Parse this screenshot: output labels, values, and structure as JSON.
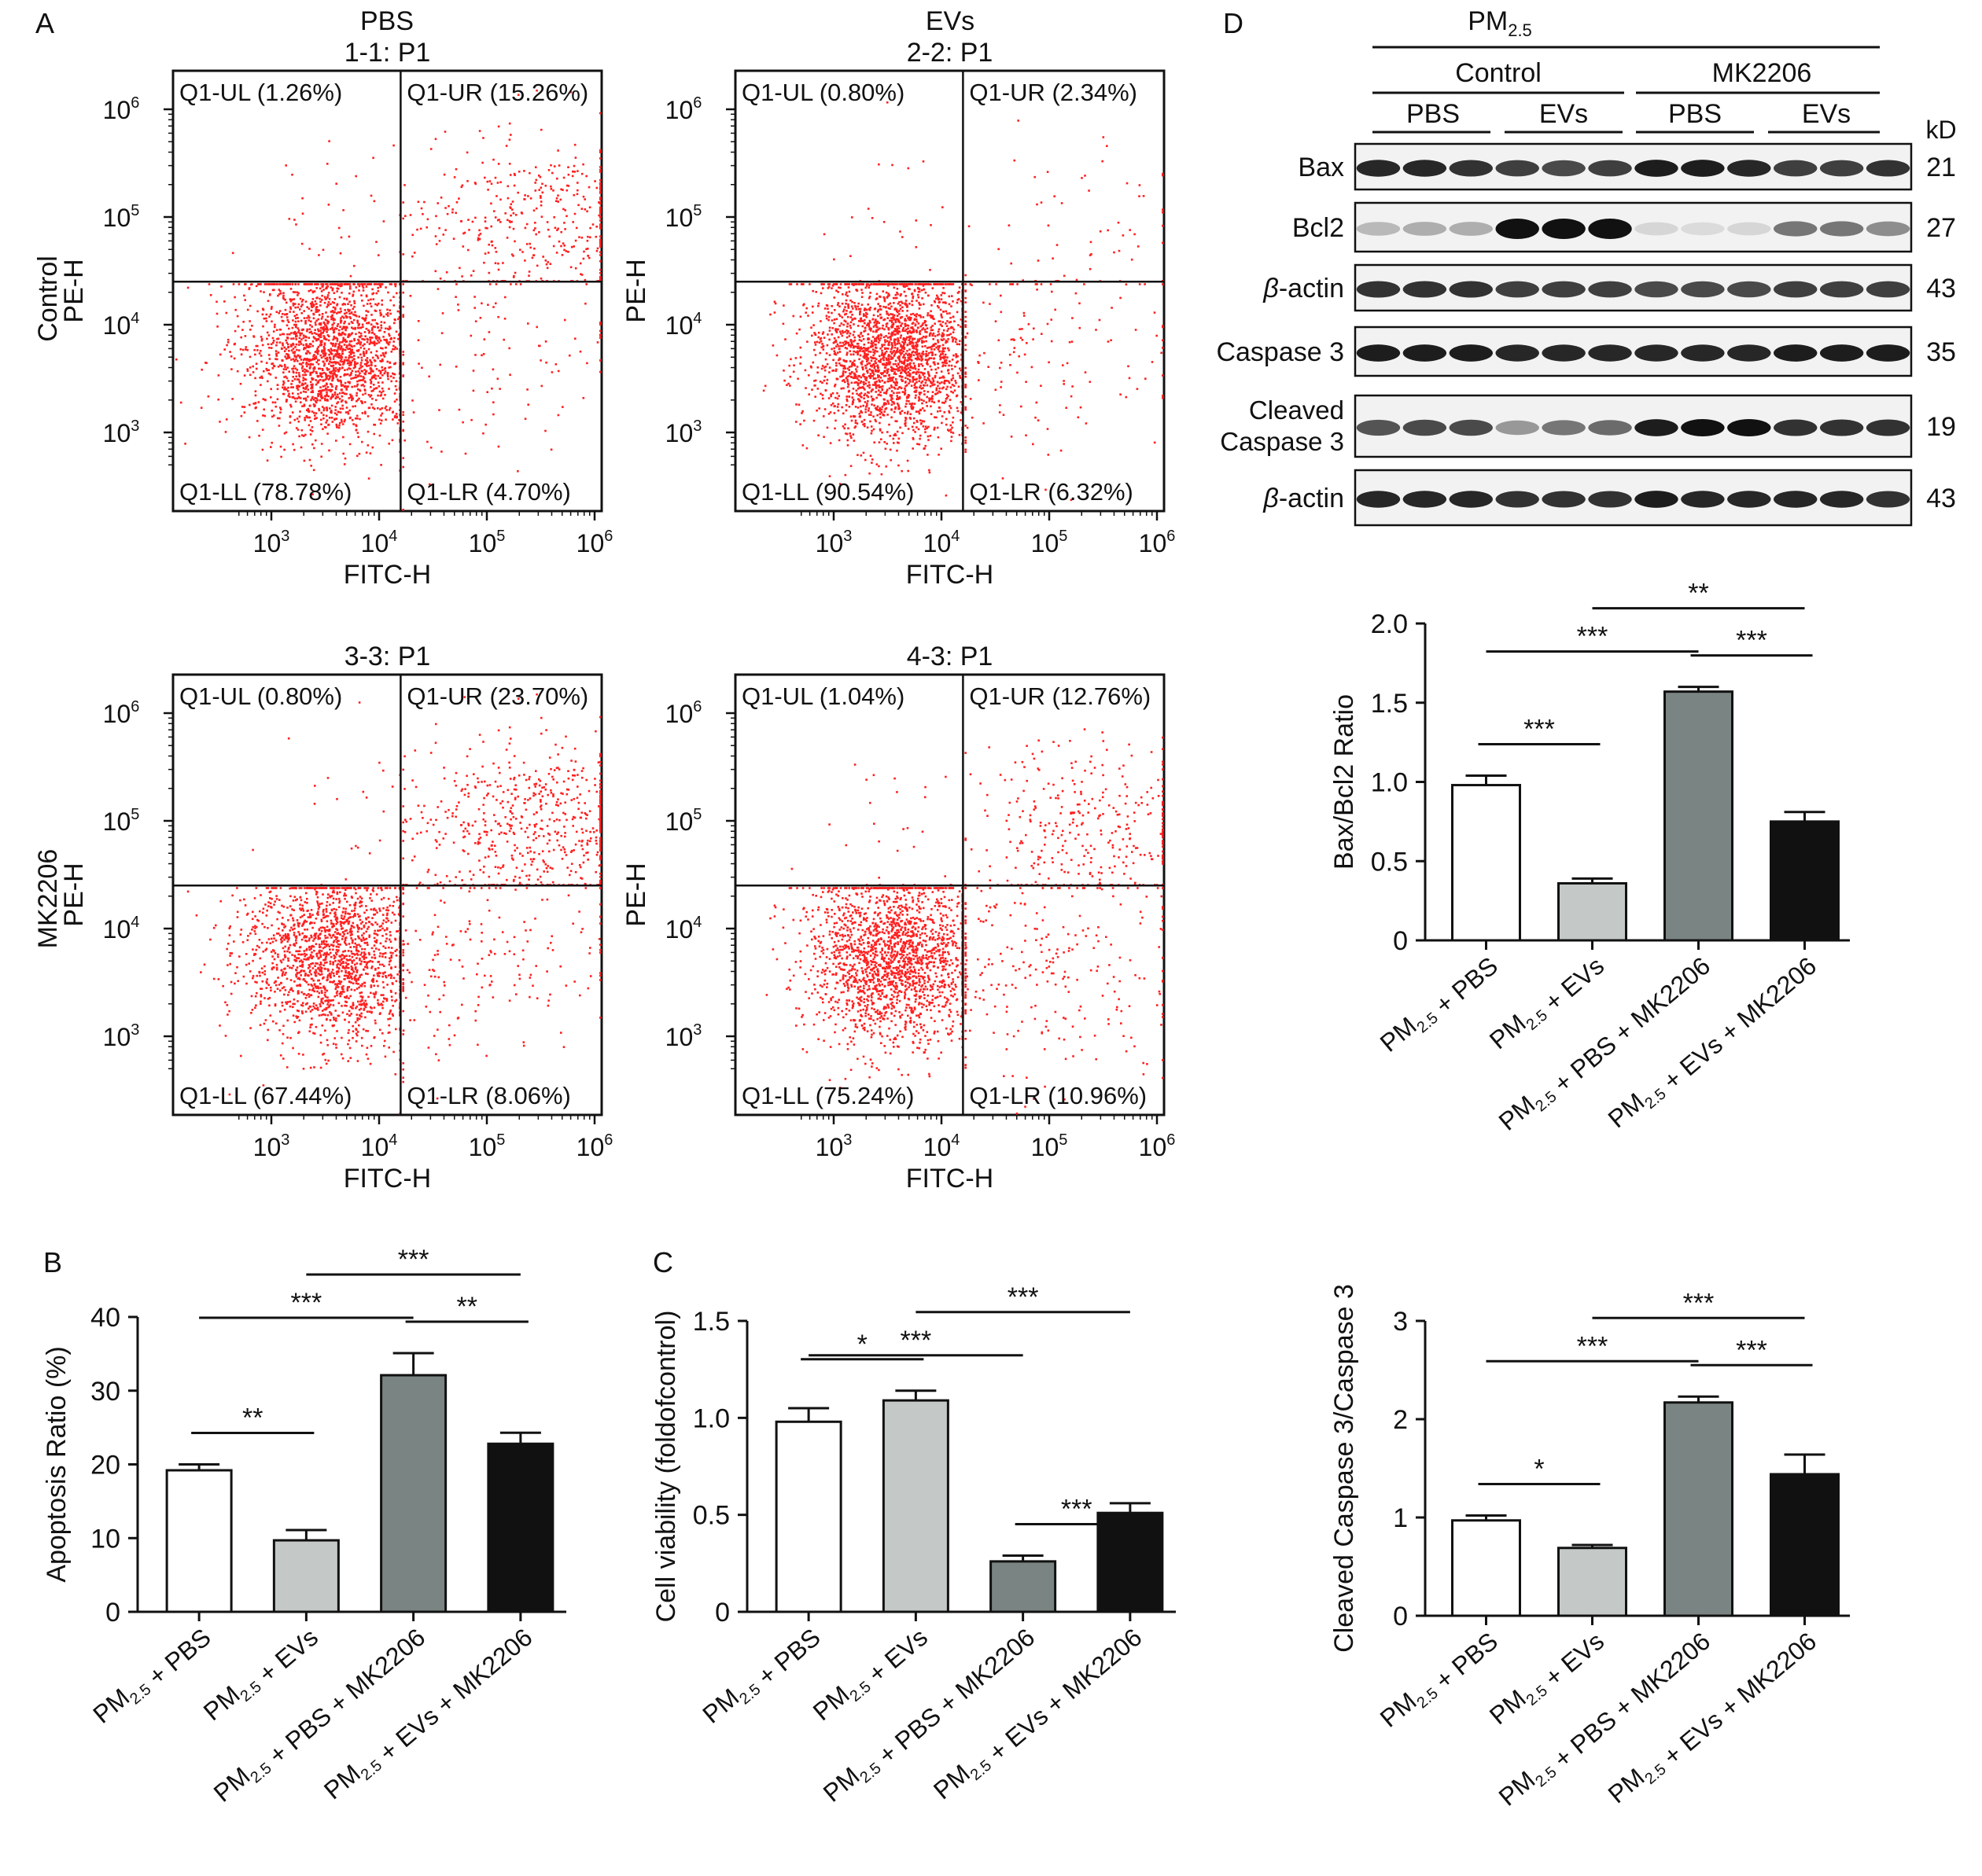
{
  "panel_letters": [
    "A",
    "B",
    "C",
    "D"
  ],
  "groups": [
    "PM2.5 + PBS",
    "PM2.5 + EVs",
    "PM2.5 + PBS + MK2206",
    "PM2.5 + EVs + MK2206"
  ],
  "flow": {
    "col_headers": [
      "PBS",
      "EVs"
    ],
    "row_headers": [
      "Control",
      "MK2206"
    ],
    "xlabel": "FITC-H",
    "ylabel": "PE-H",
    "dot_color": "#ff2020",
    "plots": [
      {
        "title": "1-1: P1",
        "UL": "Q1-UL (1.26%)",
        "UR": "Q1-UR (15.26%)",
        "LL": "Q1-LL (78.78%)",
        "LR": "Q1-LR (4.70%)",
        "pct": {
          "UL": 1.26,
          "UR": 15.26,
          "LL": 78.78,
          "LR": 4.7
        }
      },
      {
        "title": "2-2: P1",
        "UL": "Q1-UL (0.80%)",
        "UR": "Q1-UR (2.34%)",
        "LL": "Q1-LL (90.54%)",
        "LR": "Q1-LR (6.32%)",
        "pct": {
          "UL": 0.8,
          "UR": 2.34,
          "LL": 90.54,
          "LR": 6.32
        }
      },
      {
        "title": "3-3: P1",
        "UL": "Q1-UL (0.80%)",
        "UR": "Q1-UR (23.70%)",
        "LL": "Q1-LL (67.44%)",
        "LR": "Q1-LR (8.06%)",
        "pct": {
          "UL": 0.8,
          "UR": 23.7,
          "LL": 67.44,
          "LR": 8.06
        }
      },
      {
        "title": "4-3: P1",
        "UL": "Q1-UL (1.04%)",
        "UR": "Q1-UR (12.76%)",
        "LL": "Q1-LL (75.24%)",
        "LR": "Q1-LR (10.96%)",
        "pct": {
          "UL": 1.04,
          "UR": 12.76,
          "LL": 75.24,
          "LR": 10.96
        }
      }
    ]
  },
  "blot": {
    "top_label": "PM2.5",
    "conditions": [
      "Control",
      "MK2206"
    ],
    "treatments": [
      "PBS",
      "EVs",
      "PBS",
      "EVs"
    ],
    "kd_header": "kD",
    "rows": [
      {
        "label": "Bax",
        "kd": "21"
      },
      {
        "label": "Bcl2",
        "kd": "27"
      },
      {
        "label": "β-actin",
        "kd": "43"
      },
      {
        "label": "Caspase 3",
        "kd": "35"
      },
      {
        "label": "Cleaved Caspase 3",
        "kd": "19"
      },
      {
        "label": "β-actin",
        "kd": "43"
      }
    ]
  },
  "chart_data": [
    {
      "id": "B",
      "type": "bar",
      "categories": [
        "PM2.5 + PBS",
        "PM2.5 + EVs",
        "PM2.5 + PBS + MK2206",
        "PM2.5 + EVs + MK2206"
      ],
      "values": [
        19.2,
        9.7,
        32.1,
        22.8
      ],
      "errors": [
        0.8,
        1.4,
        3.0,
        1.5
      ],
      "colors": [
        "#ffffff",
        "#c4c9c8",
        "#7a8482",
        "#111111"
      ],
      "ylabel": "Apoptosis Ratio (%)",
      "ylim": [
        0,
        40
      ],
      "yticks": [
        "0",
        "10",
        "20",
        "30",
        "40"
      ],
      "significance": [
        {
          "from": 0,
          "to": 1,
          "label": "**"
        },
        {
          "from": 0,
          "to": 2,
          "label": "***"
        },
        {
          "from": 1,
          "to": 3,
          "label": "***"
        },
        {
          "from": 2,
          "to": 3,
          "label": "**"
        }
      ]
    },
    {
      "id": "C",
      "type": "bar",
      "categories": [
        "PM2.5 + PBS",
        "PM2.5 + EVs",
        "PM2.5 + PBS + MK2206",
        "PM2.5 + EVs + MK2206"
      ],
      "values": [
        0.98,
        1.09,
        0.26,
        0.51
      ],
      "errors": [
        0.07,
        0.05,
        0.03,
        0.05
      ],
      "colors": [
        "#ffffff",
        "#c4c9c8",
        "#7a8482",
        "#111111"
      ],
      "ylabel": "Cell viability (foldofcontrol)",
      "ylim": [
        0,
        1.5
      ],
      "yticks": [
        "0",
        "0.5",
        "1.0",
        "1.5"
      ],
      "significance": [
        {
          "from": 0,
          "to": 1,
          "label": "*"
        },
        {
          "from": 0,
          "to": 2,
          "label": "***"
        },
        {
          "from": 1,
          "to": 3,
          "label": "***"
        },
        {
          "from": 2,
          "to": 3,
          "label": "***"
        }
      ]
    },
    {
      "id": "D1",
      "type": "bar",
      "categories": [
        "PM2.5 + PBS",
        "PM2.5 + EVs",
        "PM2.5 + PBS + MK2206",
        "PM2.5 + EVs + MK2206"
      ],
      "values": [
        0.98,
        0.36,
        1.57,
        0.75
      ],
      "errors": [
        0.06,
        0.03,
        0.03,
        0.06
      ],
      "colors": [
        "#ffffff",
        "#c4c9c8",
        "#7a8482",
        "#111111"
      ],
      "ylabel": "Bax/Bcl2 Ratio",
      "ylim": [
        0,
        2.0
      ],
      "yticks": [
        "0",
        "0.5",
        "1.0",
        "1.5",
        "2.0"
      ],
      "significance": [
        {
          "from": 0,
          "to": 1,
          "label": "***"
        },
        {
          "from": 0,
          "to": 2,
          "label": "***"
        },
        {
          "from": 1,
          "to": 3,
          "label": "**"
        },
        {
          "from": 2,
          "to": 3,
          "label": "***"
        }
      ]
    },
    {
      "id": "D2",
      "type": "bar",
      "categories": [
        "PM2.5 + PBS",
        "PM2.5 + EVs",
        "PM2.5 + PBS + MK2206",
        "PM2.5 + EVs + MK2206"
      ],
      "values": [
        0.97,
        0.69,
        2.17,
        1.44
      ],
      "errors": [
        0.05,
        0.03,
        0.06,
        0.2
      ],
      "colors": [
        "#ffffff",
        "#c4c9c8",
        "#7a8482",
        "#111111"
      ],
      "ylabel": "Cleaved Caspase 3/Caspase 3",
      "ylim": [
        0,
        3
      ],
      "yticks": [
        "0",
        "1",
        "2",
        "3"
      ],
      "significance": [
        {
          "from": 0,
          "to": 1,
          "label": "*"
        },
        {
          "from": 0,
          "to": 2,
          "label": "***"
        },
        {
          "from": 1,
          "to": 3,
          "label": "***"
        },
        {
          "from": 2,
          "to": 3,
          "label": "***"
        }
      ]
    }
  ]
}
